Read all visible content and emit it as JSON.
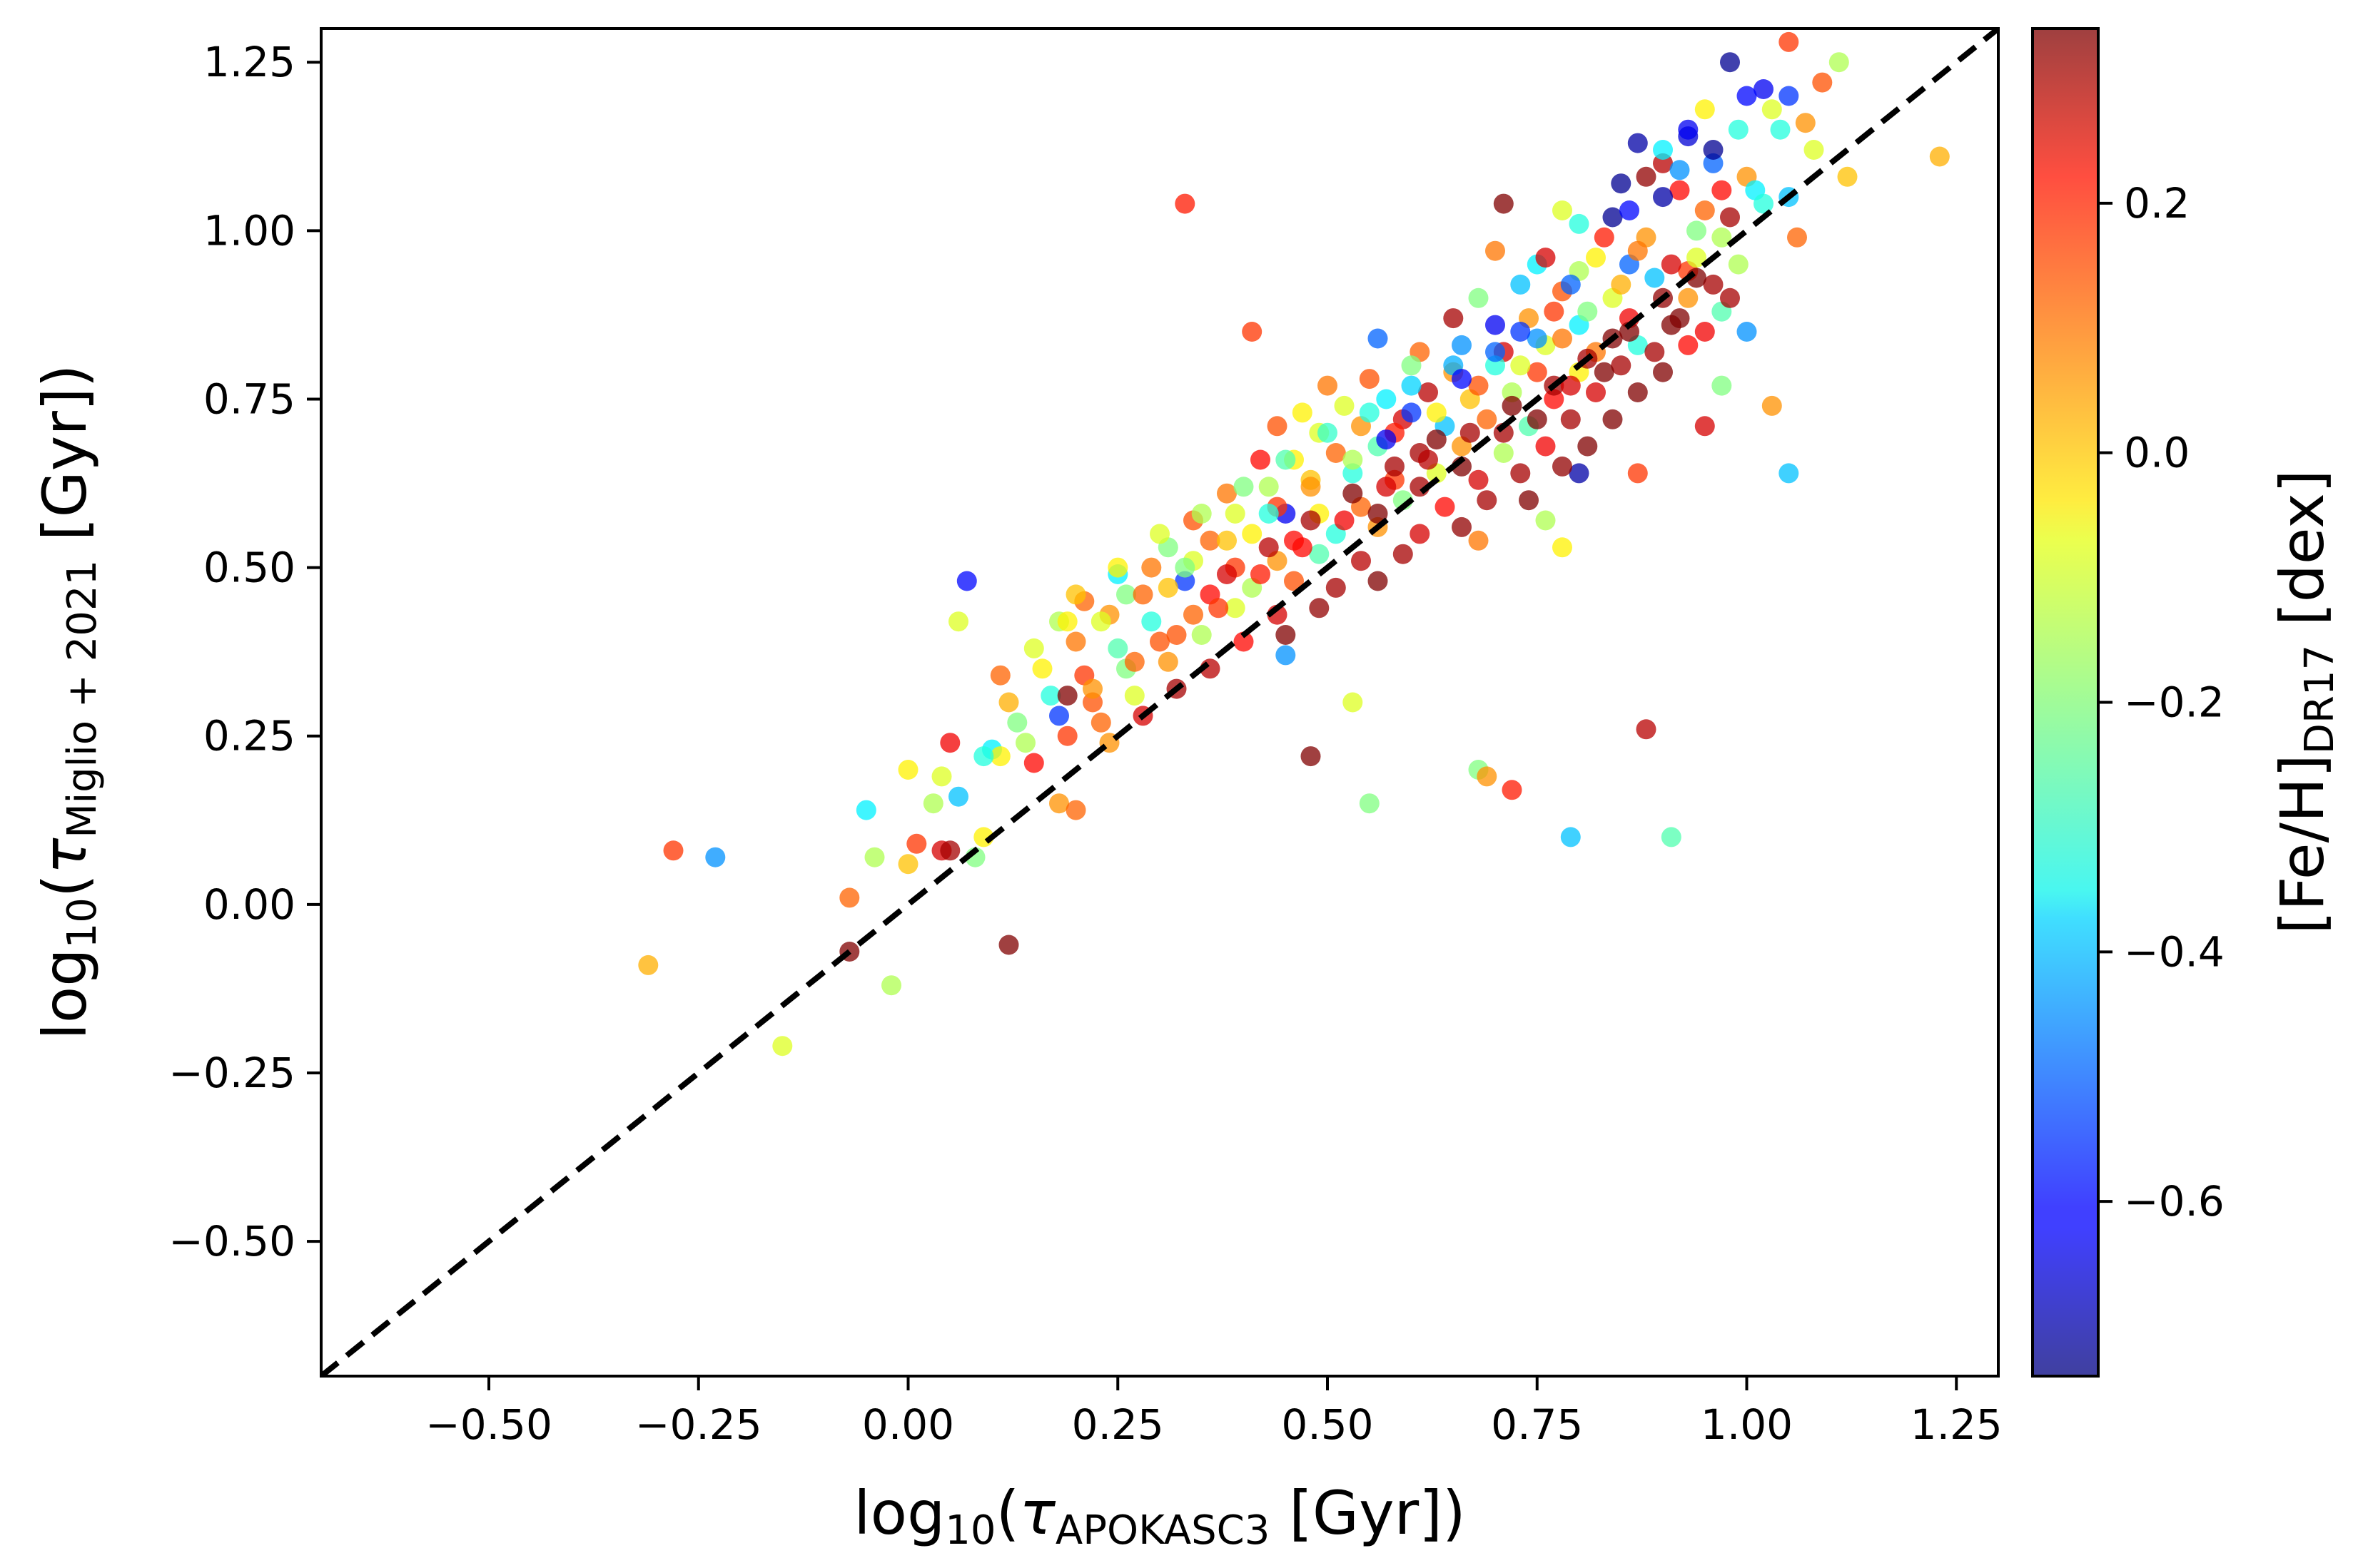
{
  "chart_data": {
    "type": "scatter",
    "title": "",
    "xlabel": {
      "prefix": "log",
      "prefix_sub": "10",
      "open": "(",
      "symbol": "τ",
      "symbol_sub": "APOKASC3",
      "suffix": " [Gyr])"
    },
    "ylabel": {
      "prefix": "log",
      "prefix_sub": "10",
      "open": "(",
      "symbol": "τ",
      "symbol_sub": "Miglio + 2021",
      "suffix": " [Gyr])"
    },
    "xlim": [
      -0.7,
      1.3
    ],
    "ylim": [
      -0.7,
      1.3
    ],
    "x_ticks": [
      -0.5,
      -0.25,
      0.0,
      0.25,
      0.5,
      0.75,
      1.0,
      1.25
    ],
    "x_tick_labels": [
      "−0.50",
      "−0.25",
      "0.00",
      "0.25",
      "0.50",
      "0.75",
      "1.00",
      "1.25"
    ],
    "y_ticks": [
      -0.5,
      -0.25,
      0.0,
      0.25,
      0.5,
      0.75,
      1.0,
      1.25
    ],
    "y_tick_labels": [
      "−0.50",
      "−0.25",
      "0.00",
      "0.25",
      "0.50",
      "0.75",
      "1.00",
      "1.25"
    ],
    "grid": false,
    "reference_line": {
      "style": "dashed",
      "color": "#000000",
      "x": [
        -0.7,
        1.3
      ],
      "y": [
        -0.7,
        1.3
      ]
    },
    "colorbar": {
      "label": {
        "prefix": "[Fe/H]",
        "sub": "DR17",
        "suffix": " [dex]"
      },
      "cmap": "jet",
      "range": [
        -0.74,
        0.34
      ],
      "ticks": [
        -0.6,
        -0.4,
        -0.2,
        0.0,
        0.2
      ],
      "tick_labels": [
        "−0.6",
        "−0.4",
        "−0.2",
        "0.0",
        "0.2"
      ]
    },
    "points": [
      [
        1.05,
        1.28,
        0.15
      ],
      [
        1.11,
        1.25,
        -0.15
      ],
      [
        0.98,
        1.25,
        -0.72
      ],
      [
        1.02,
        1.21,
        -0.62
      ],
      [
        1.05,
        1.2,
        -0.55
      ],
      [
        0.95,
        1.18,
        -0.05
      ],
      [
        1.09,
        1.22,
        0.12
      ],
      [
        1.04,
        1.15,
        -0.3
      ],
      [
        0.93,
        1.14,
        -0.65
      ],
      [
        0.87,
        1.13,
        -0.7
      ],
      [
        0.96,
        1.1,
        -0.5
      ],
      [
        1.08,
        1.12,
        -0.1
      ],
      [
        1.0,
        1.08,
        0.05
      ],
      [
        0.9,
        1.1,
        0.28
      ],
      [
        1.23,
        1.11,
        0.02
      ],
      [
        1.12,
        1.08,
        0.0
      ],
      [
        1.01,
        1.06,
        -0.35
      ],
      [
        0.92,
        1.06,
        0.2
      ],
      [
        0.85,
        1.07,
        -0.72
      ],
      [
        0.84,
        1.02,
        -0.72
      ],
      [
        0.78,
        1.03,
        -0.1
      ],
      [
        0.71,
        1.04,
        0.34
      ],
      [
        0.33,
        1.04,
        0.18
      ],
      [
        1.05,
        1.05,
        -0.4
      ],
      [
        0.98,
        1.02,
        0.3
      ],
      [
        0.94,
        1.0,
        -0.2
      ],
      [
        0.88,
        0.99,
        0.05
      ],
      [
        0.8,
        1.01,
        -0.3
      ],
      [
        1.06,
        0.99,
        0.1
      ],
      [
        0.99,
        0.95,
        -0.15
      ],
      [
        0.93,
        0.94,
        0.15
      ],
      [
        0.86,
        0.95,
        -0.5
      ],
      [
        0.82,
        0.96,
        -0.05
      ],
      [
        0.75,
        0.95,
        -0.35
      ],
      [
        0.7,
        0.97,
        0.08
      ],
      [
        0.96,
        0.92,
        0.3
      ],
      [
        0.9,
        0.9,
        0.32
      ],
      [
        0.84,
        0.9,
        -0.1
      ],
      [
        0.78,
        0.91,
        0.12
      ],
      [
        0.73,
        0.92,
        -0.4
      ],
      [
        0.68,
        0.9,
        -0.2
      ],
      [
        0.97,
        0.88,
        -0.25
      ],
      [
        0.91,
        0.86,
        0.34
      ],
      [
        0.86,
        0.87,
        0.22
      ],
      [
        0.8,
        0.86,
        -0.35
      ],
      [
        0.74,
        0.87,
        0.05
      ],
      [
        0.7,
        0.86,
        -0.62
      ],
      [
        0.65,
        0.87,
        0.3
      ],
      [
        0.41,
        0.85,
        0.15
      ],
      [
        1.0,
        0.85,
        -0.45
      ],
      [
        0.93,
        0.83,
        0.2
      ],
      [
        0.87,
        0.83,
        -0.3
      ],
      [
        0.82,
        0.82,
        0.08
      ],
      [
        0.76,
        0.83,
        -0.1
      ],
      [
        0.71,
        0.82,
        0.25
      ],
      [
        0.66,
        0.83,
        -0.45
      ],
      [
        0.61,
        0.82,
        0.1
      ],
      [
        0.56,
        0.84,
        -0.5
      ],
      [
        0.9,
        0.79,
        0.34
      ],
      [
        0.85,
        0.8,
        0.3
      ],
      [
        0.8,
        0.79,
        -0.05
      ],
      [
        0.75,
        0.79,
        0.15
      ],
      [
        0.7,
        0.8,
        -0.3
      ],
      [
        0.65,
        0.79,
        0.05
      ],
      [
        0.6,
        0.8,
        -0.2
      ],
      [
        0.55,
        0.78,
        0.12
      ],
      [
        0.5,
        0.77,
        0.08
      ],
      [
        0.87,
        0.76,
        0.34
      ],
      [
        0.82,
        0.76,
        0.25
      ],
      [
        0.77,
        0.75,
        0.2
      ],
      [
        0.72,
        0.76,
        -0.15
      ],
      [
        0.67,
        0.75,
        0.0
      ],
      [
        0.62,
        0.76,
        0.28
      ],
      [
        0.57,
        0.75,
        -0.35
      ],
      [
        0.52,
        0.74,
        -0.1
      ],
      [
        0.47,
        0.73,
        -0.05
      ],
      [
        0.97,
        0.77,
        -0.2
      ],
      [
        1.03,
        0.74,
        0.05
      ],
      [
        0.84,
        0.72,
        0.34
      ],
      [
        0.79,
        0.72,
        0.3
      ],
      [
        0.74,
        0.71,
        -0.25
      ],
      [
        0.69,
        0.72,
        0.1
      ],
      [
        0.64,
        0.71,
        -0.4
      ],
      [
        0.59,
        0.72,
        0.25
      ],
      [
        0.54,
        0.71,
        0.05
      ],
      [
        0.49,
        0.7,
        -0.1
      ],
      [
        0.44,
        0.71,
        0.12
      ],
      [
        0.95,
        0.71,
        0.25
      ],
      [
        0.81,
        0.68,
        0.34
      ],
      [
        0.76,
        0.68,
        0.22
      ],
      [
        0.71,
        0.67,
        -0.15
      ],
      [
        0.66,
        0.68,
        0.05
      ],
      [
        0.61,
        0.67,
        0.3
      ],
      [
        0.56,
        0.68,
        -0.25
      ],
      [
        0.51,
        0.67,
        0.1
      ],
      [
        0.46,
        0.66,
        -0.05
      ],
      [
        0.42,
        0.66,
        0.2
      ],
      [
        0.8,
        0.64,
        -0.7
      ],
      [
        0.87,
        0.64,
        0.15
      ],
      [
        1.05,
        0.64,
        -0.4
      ],
      [
        0.78,
        0.65,
        0.32
      ],
      [
        0.73,
        0.64,
        0.3
      ],
      [
        0.68,
        0.63,
        0.25
      ],
      [
        0.63,
        0.64,
        -0.1
      ],
      [
        0.58,
        0.63,
        0.15
      ],
      [
        0.53,
        0.64,
        -0.3
      ],
      [
        0.48,
        0.63,
        0.0
      ],
      [
        0.43,
        0.62,
        -0.15
      ],
      [
        0.38,
        0.61,
        0.08
      ],
      [
        0.45,
        0.58,
        -0.62
      ],
      [
        0.74,
        0.6,
        0.34
      ],
      [
        0.69,
        0.6,
        0.3
      ],
      [
        0.64,
        0.59,
        0.2
      ],
      [
        0.59,
        0.6,
        -0.2
      ],
      [
        0.54,
        0.59,
        0.1
      ],
      [
        0.49,
        0.58,
        -0.05
      ],
      [
        0.44,
        0.59,
        0.15
      ],
      [
        0.39,
        0.58,
        -0.1
      ],
      [
        0.34,
        0.57,
        0.12
      ],
      [
        0.76,
        0.57,
        -0.15
      ],
      [
        0.68,
        0.54,
        0.08
      ],
      [
        0.66,
        0.56,
        0.32
      ],
      [
        0.61,
        0.55,
        0.25
      ],
      [
        0.56,
        0.56,
        0.05
      ],
      [
        0.51,
        0.55,
        -0.3
      ],
      [
        0.46,
        0.54,
        0.2
      ],
      [
        0.41,
        0.55,
        -0.05
      ],
      [
        0.36,
        0.54,
        0.1
      ],
      [
        0.31,
        0.53,
        -0.2
      ],
      [
        0.78,
        0.53,
        -0.05
      ],
      [
        0.33,
        0.48,
        -0.55
      ],
      [
        0.59,
        0.52,
        0.3
      ],
      [
        0.54,
        0.51,
        0.28
      ],
      [
        0.49,
        0.52,
        -0.25
      ],
      [
        0.44,
        0.51,
        0.05
      ],
      [
        0.39,
        0.5,
        0.15
      ],
      [
        0.34,
        0.51,
        -0.1
      ],
      [
        0.29,
        0.5,
        0.08
      ],
      [
        0.25,
        0.49,
        -0.35
      ],
      [
        0.07,
        0.48,
        -0.6
      ],
      [
        0.06,
        0.42,
        -0.1
      ],
      [
        0.56,
        0.48,
        0.34
      ],
      [
        0.51,
        0.47,
        0.3
      ],
      [
        0.46,
        0.48,
        0.12
      ],
      [
        0.41,
        0.47,
        -0.15
      ],
      [
        0.36,
        0.46,
        0.2
      ],
      [
        0.31,
        0.47,
        0.0
      ],
      [
        0.26,
        0.46,
        -0.2
      ],
      [
        0.21,
        0.45,
        0.1
      ],
      [
        0.18,
        0.42,
        -0.15
      ],
      [
        0.49,
        0.44,
        0.32
      ],
      [
        0.44,
        0.43,
        0.25
      ],
      [
        0.39,
        0.44,
        -0.1
      ],
      [
        0.34,
        0.43,
        0.1
      ],
      [
        0.29,
        0.42,
        -0.3
      ],
      [
        0.24,
        0.43,
        0.05
      ],
      [
        0.19,
        0.42,
        -0.05
      ],
      [
        0.45,
        0.4,
        0.34
      ],
      [
        0.4,
        0.39,
        0.2
      ],
      [
        0.35,
        0.4,
        -0.15
      ],
      [
        0.3,
        0.39,
        0.12
      ],
      [
        0.25,
        0.38,
        -0.25
      ],
      [
        0.2,
        0.39,
        0.08
      ],
      [
        0.15,
        0.38,
        -0.1
      ],
      [
        0.45,
        0.37,
        -0.45
      ],
      [
        0.36,
        0.35,
        0.28
      ],
      [
        0.31,
        0.36,
        0.05
      ],
      [
        0.26,
        0.35,
        -0.2
      ],
      [
        0.21,
        0.34,
        0.15
      ],
      [
        0.16,
        0.35,
        -0.05
      ],
      [
        0.11,
        0.34,
        0.1
      ],
      [
        0.32,
        0.32,
        0.3
      ],
      [
        0.27,
        0.31,
        -0.1
      ],
      [
        0.22,
        0.3,
        0.12
      ],
      [
        0.17,
        0.31,
        -0.3
      ],
      [
        0.12,
        0.3,
        0.02
      ],
      [
        0.28,
        0.28,
        0.25
      ],
      [
        0.23,
        0.27,
        0.1
      ],
      [
        0.18,
        0.28,
        -0.55
      ],
      [
        0.13,
        0.27,
        -0.2
      ],
      [
        0.19,
        0.31,
        0.34
      ],
      [
        0.24,
        0.24,
        0.05
      ],
      [
        0.19,
        0.25,
        0.15
      ],
      [
        0.14,
        0.24,
        -0.15
      ],
      [
        0.1,
        0.23,
        -0.35
      ],
      [
        0.15,
        0.21,
        0.2
      ],
      [
        0.11,
        0.22,
        -0.05
      ],
      [
        0.53,
        0.3,
        -0.1
      ],
      [
        0.48,
        0.22,
        0.34
      ],
      [
        0.05,
        0.24,
        0.22
      ],
      [
        0.09,
        0.22,
        -0.3
      ],
      [
        0.55,
        0.15,
        -0.2
      ],
      [
        0.04,
        0.19,
        -0.1
      ],
      [
        0.0,
        0.2,
        -0.05
      ],
      [
        0.06,
        0.16,
        -0.4
      ],
      [
        0.03,
        0.15,
        -0.15
      ],
      [
        0.18,
        0.15,
        0.05
      ],
      [
        0.2,
        0.14,
        0.1
      ],
      [
        -0.05,
        0.14,
        -0.35
      ],
      [
        0.09,
        0.1,
        -0.05
      ],
      [
        0.04,
        0.08,
        0.25
      ],
      [
        0.05,
        0.08,
        0.3
      ],
      [
        0.01,
        0.09,
        0.15
      ],
      [
        0.08,
        0.07,
        -0.2
      ],
      [
        0.88,
        0.26,
        0.28
      ],
      [
        0.68,
        0.2,
        -0.2
      ],
      [
        0.69,
        0.19,
        0.05
      ],
      [
        0.72,
        0.17,
        0.18
      ],
      [
        0.79,
        0.1,
        -0.4
      ],
      [
        0.91,
        0.1,
        -0.25
      ],
      [
        -0.28,
        0.08,
        0.15
      ],
      [
        -0.23,
        0.07,
        -0.45
      ],
      [
        -0.04,
        0.07,
        -0.15
      ],
      [
        -0.0,
        0.06,
        0.0
      ],
      [
        -0.07,
        0.01,
        0.1
      ],
      [
        -0.07,
        -0.07,
        0.34
      ],
      [
        0.12,
        -0.06,
        0.34
      ],
      [
        -0.02,
        -0.12,
        -0.15
      ],
      [
        -0.31,
        -0.09,
        0.02
      ],
      [
        -0.15,
        -0.21,
        -0.1
      ],
      [
        0.93,
        1.15,
        -0.62
      ],
      [
        0.96,
        1.12,
        -0.72
      ],
      [
        1.0,
        1.2,
        -0.6
      ],
      [
        0.9,
        1.12,
        -0.35
      ],
      [
        0.88,
        1.08,
        0.32
      ],
      [
        0.92,
        1.09,
        -0.45
      ],
      [
        0.95,
        1.03,
        0.1
      ],
      [
        1.02,
        1.04,
        -0.3
      ],
      [
        0.97,
        1.06,
        0.2
      ],
      [
        0.83,
        0.99,
        0.18
      ],
      [
        0.8,
        0.94,
        -0.15
      ],
      [
        0.76,
        0.96,
        0.25
      ],
      [
        0.89,
        0.93,
        -0.4
      ],
      [
        0.94,
        0.96,
        -0.1
      ],
      [
        0.98,
        0.9,
        0.3
      ],
      [
        0.92,
        0.87,
        0.34
      ],
      [
        0.86,
        0.85,
        0.34
      ],
      [
        0.89,
        0.82,
        0.3
      ],
      [
        0.95,
        0.85,
        0.22
      ],
      [
        0.93,
        0.9,
        0.05
      ],
      [
        0.83,
        0.79,
        0.34
      ],
      [
        0.77,
        0.77,
        0.3
      ],
      [
        0.72,
        0.74,
        0.34
      ],
      [
        0.67,
        0.7,
        0.3
      ],
      [
        0.62,
        0.66,
        0.28
      ],
      [
        0.57,
        0.62,
        0.25
      ],
      [
        0.52,
        0.57,
        0.22
      ],
      [
        0.47,
        0.53,
        0.2
      ],
      [
        0.42,
        0.49,
        0.18
      ],
      [
        0.37,
        0.44,
        0.15
      ],
      [
        0.32,
        0.4,
        0.12
      ],
      [
        0.27,
        0.36,
        0.1
      ],
      [
        0.22,
        0.32,
        0.05
      ],
      [
        0.75,
        0.84,
        -0.45
      ],
      [
        0.7,
        0.82,
        -0.5
      ],
      [
        0.65,
        0.8,
        -0.42
      ],
      [
        0.6,
        0.77,
        -0.38
      ],
      [
        0.55,
        0.73,
        -0.3
      ],
      [
        0.5,
        0.7,
        -0.28
      ],
      [
        0.45,
        0.66,
        -0.25
      ],
      [
        0.4,
        0.62,
        -0.2
      ],
      [
        0.35,
        0.58,
        -0.15
      ],
      [
        0.3,
        0.55,
        -0.1
      ],
      [
        0.25,
        0.5,
        -0.05
      ],
      [
        0.2,
        0.46,
        0.0
      ],
      [
        0.85,
        0.92,
        0.02
      ],
      [
        0.81,
        0.88,
        -0.2
      ],
      [
        0.78,
        0.84,
        0.08
      ],
      [
        0.73,
        0.8,
        -0.1
      ],
      [
        0.68,
        0.77,
        0.12
      ],
      [
        0.63,
        0.73,
        -0.05
      ],
      [
        0.58,
        0.7,
        0.18
      ],
      [
        0.53,
        0.66,
        -0.15
      ],
      [
        0.48,
        0.62,
        0.05
      ],
      [
        0.43,
        0.58,
        -0.3
      ],
      [
        0.38,
        0.54,
        0.0
      ],
      [
        0.33,
        0.5,
        -0.2
      ],
      [
        0.28,
        0.46,
        0.1
      ],
      [
        0.23,
        0.42,
        -0.1
      ],
      [
        0.63,
        0.69,
        0.34
      ],
      [
        0.58,
        0.65,
        0.3
      ],
      [
        0.53,
        0.61,
        0.34
      ],
      [
        0.48,
        0.57,
        0.3
      ],
      [
        0.43,
        0.53,
        0.28
      ],
      [
        0.38,
        0.49,
        0.25
      ],
      [
        0.6,
        0.73,
        -0.55
      ],
      [
        0.57,
        0.69,
        -0.62
      ],
      [
        0.66,
        0.78,
        -0.6
      ],
      [
        0.73,
        0.85,
        -0.55
      ],
      [
        0.79,
        0.92,
        -0.5
      ],
      [
        0.86,
        1.03,
        -0.6
      ],
      [
        0.9,
        1.05,
        -0.7
      ],
      [
        0.99,
        1.15,
        -0.3
      ],
      [
        1.03,
        1.18,
        -0.1
      ],
      [
        1.07,
        1.16,
        0.05
      ],
      [
        0.87,
        0.97,
        0.08
      ],
      [
        0.77,
        0.88,
        0.15
      ],
      [
        0.84,
        0.84,
        0.34
      ],
      [
        0.81,
        0.81,
        0.3
      ],
      [
        0.79,
        0.77,
        0.25
      ],
      [
        0.91,
        0.95,
        0.25
      ],
      [
        0.94,
        0.93,
        0.34
      ],
      [
        0.97,
        0.99,
        -0.15
      ],
      [
        0.75,
        0.72,
        0.34
      ],
      [
        0.71,
        0.7,
        0.3
      ],
      [
        0.66,
        0.65,
        0.34
      ],
      [
        0.61,
        0.62,
        0.3
      ],
      [
        0.56,
        0.58,
        0.34
      ]
    ]
  }
}
